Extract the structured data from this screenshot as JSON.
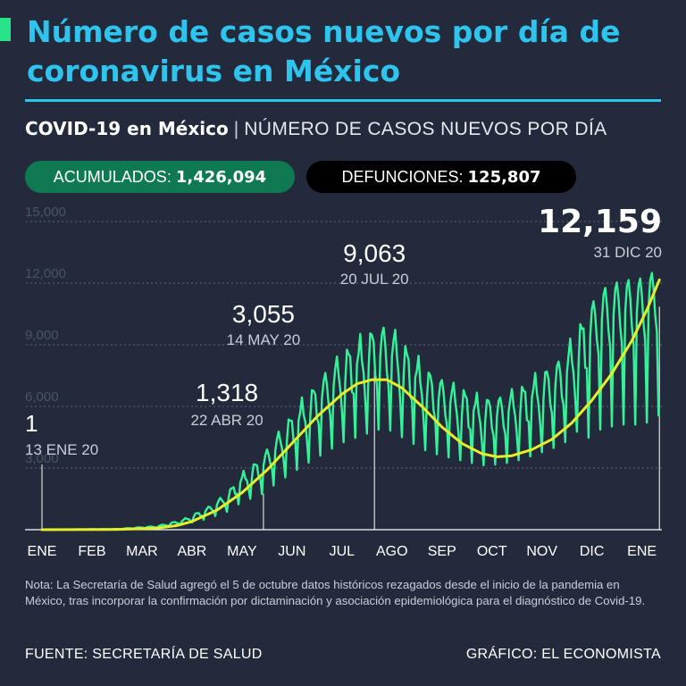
{
  "header": {
    "title": "Número de casos nuevos por día de coronavirus en México",
    "subtitle_strong": "COVID-19 en México",
    "subtitle_sep": "|",
    "subtitle_light": "NÚMERO DE CASOS NUEVOS POR DÍA"
  },
  "stats": {
    "acumulados_label": "ACUMULADOS:",
    "acumulados_value": "1,426,094",
    "defunciones_label": "DEFUNCIONES:",
    "defunciones_value": "125,807"
  },
  "colors": {
    "background": "#232a3b",
    "title": "#2ec4ee",
    "daily_series": "#35f29a",
    "trend_series": "#e5ee2a",
    "acumulados_pill": "#0f7a52",
    "defunciones_pill": "#000000"
  },
  "chart_data": {
    "type": "line",
    "title": "COVID-19 en México | NÚMERO DE CASOS NUEVOS POR DÍA",
    "x_unit": "months since 1 Jan 2020",
    "xlim": [
      0,
      12.4
    ],
    "ylim": [
      0,
      15000
    ],
    "yticks": [
      3000,
      6000,
      9000,
      12000,
      15000
    ],
    "ytick_labels": [
      "3,000",
      "6,000",
      "9,000",
      "12,000",
      "15,000"
    ],
    "xticks": [
      0,
      1,
      2,
      3,
      4,
      5,
      6,
      7,
      8,
      9,
      10,
      11,
      12
    ],
    "xtick_labels": [
      "ENE",
      "FEB",
      "MAR",
      "ABR",
      "MAY",
      "JUN",
      "JUL",
      "AGO",
      "SEP",
      "OCT",
      "NOV",
      "DIC",
      "ENE"
    ],
    "grid": true,
    "series": [
      {
        "kind": "daily",
        "style": "jagged",
        "points": [
          [
            0,
            0
          ],
          [
            1.5,
            30
          ],
          [
            2.3,
            150
          ],
          [
            2.8,
            400
          ],
          [
            3.3,
            900
          ],
          [
            3.7,
            1500
          ],
          [
            4.0,
            2300
          ],
          [
            4.4,
            3000
          ],
          [
            4.8,
            4200
          ],
          [
            5.2,
            5300
          ],
          [
            5.6,
            6300
          ],
          [
            6.0,
            7300
          ],
          [
            6.4,
            7900
          ],
          [
            6.7,
            8400
          ],
          [
            7.0,
            8300
          ],
          [
            7.3,
            7500
          ],
          [
            7.7,
            6600
          ],
          [
            8.0,
            6200
          ],
          [
            8.4,
            5800
          ],
          [
            8.8,
            5400
          ],
          [
            9.2,
            5500
          ],
          [
            9.6,
            5900
          ],
          [
            10.0,
            6500
          ],
          [
            10.4,
            7100
          ],
          [
            10.8,
            8600
          ],
          [
            11.0,
            9600
          ],
          [
            11.2,
            10200
          ],
          [
            11.6,
            10600
          ],
          [
            11.9,
            10600
          ],
          [
            12.2,
            10900
          ],
          [
            12.35,
            11500
          ]
        ]
      },
      {
        "kind": "trend",
        "style": "smooth",
        "points": [
          [
            0,
            0
          ],
          [
            1.5,
            15
          ],
          [
            2.3,
            80
          ],
          [
            2.7,
            200
          ],
          [
            3.0,
            400
          ],
          [
            3.5,
            950
          ],
          [
            4.0,
            1800
          ],
          [
            4.5,
            2900
          ],
          [
            5.0,
            4200
          ],
          [
            5.5,
            5500
          ],
          [
            6.0,
            6600
          ],
          [
            6.3,
            7100
          ],
          [
            6.6,
            7300
          ],
          [
            6.9,
            7300
          ],
          [
            7.2,
            6900
          ],
          [
            7.6,
            6000
          ],
          [
            8.0,
            5000
          ],
          [
            8.4,
            4200
          ],
          [
            8.8,
            3700
          ],
          [
            9.1,
            3550
          ],
          [
            9.4,
            3600
          ],
          [
            9.8,
            3900
          ],
          [
            10.2,
            4400
          ],
          [
            10.6,
            5200
          ],
          [
            11.0,
            6300
          ],
          [
            11.4,
            7600
          ],
          [
            11.8,
            9200
          ],
          [
            12.1,
            10700
          ],
          [
            12.35,
            12159
          ]
        ]
      }
    ],
    "annotations": [
      {
        "x": 0.0,
        "y": 1,
        "value": "1",
        "date": "13 ENE 20"
      },
      {
        "x": 3.7,
        "y": 1318,
        "value": "1,318",
        "date": "22 ABR 20"
      },
      {
        "x": 4.43,
        "y": 3055,
        "value": "3,055",
        "date": "14 MAY 20"
      },
      {
        "x": 6.65,
        "y": 9063,
        "value": "9,063",
        "date": "20 JUL 20"
      },
      {
        "x": 12.35,
        "y": 12159,
        "value": "12,159",
        "date": "31 DIC 20"
      }
    ]
  },
  "note": "Nota: La Secretaría de Salud agregó el 5 de octubre datos históricos rezagados desde el inicio de la pandemia en México, tras incorporar la confirmación por dictaminación y asociación epidemiológica para el diagnóstico de Covid-19.",
  "footer": {
    "source": "FUENTE: SECRETARÍA DE SALUD",
    "credit": "GRÁFICO: EL ECONOMISTA"
  }
}
